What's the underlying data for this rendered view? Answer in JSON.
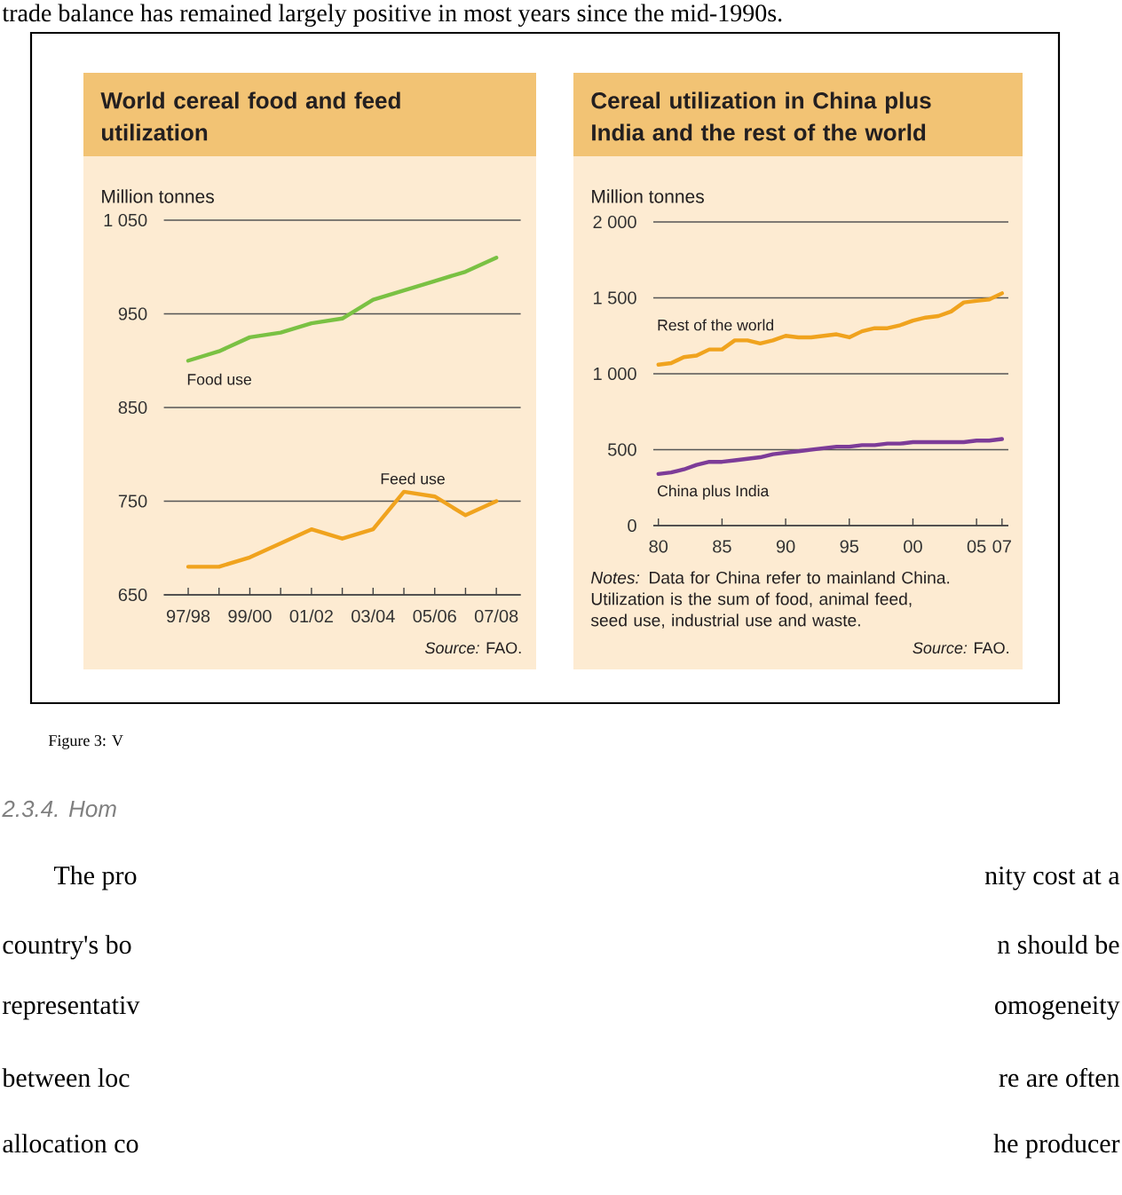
{
  "chart_data": [
    {
      "type": "line",
      "title": "World cereal food and feed utilization",
      "ylabel": "Million tonnes",
      "categories": [
        "97/98",
        null,
        "99/00",
        null,
        "01/02",
        null,
        "03/04",
        null,
        "05/06",
        null,
        "07/08"
      ],
      "series": [
        {
          "name": "Food use",
          "color": "#7ac143",
          "values": [
            900,
            910,
            925,
            930,
            940,
            945,
            965,
            975,
            985,
            995,
            1010
          ]
        },
        {
          "name": "Feed use",
          "color": "#f0a31e",
          "values": [
            680,
            680,
            690,
            705,
            720,
            710,
            720,
            760,
            755,
            735,
            750
          ]
        }
      ],
      "ylim": [
        650,
        1050
      ],
      "yticks": [
        650,
        750,
        850,
        950,
        {
          "value": 1050,
          "label": "1 050"
        }
      ],
      "grid": "y",
      "annotations": [
        "*Source:* FAO."
      ]
    },
    {
      "type": "line",
      "title": "Cereal utilization in China plus India and the rest of the world",
      "ylabel": "Million tonnes",
      "x": [
        1980,
        1981,
        1982,
        1983,
        1984,
        1985,
        1986,
        1987,
        1988,
        1989,
        1990,
        1991,
        1992,
        1993,
        1994,
        1995,
        1996,
        1997,
        1998,
        1999,
        2000,
        2001,
        2002,
        2003,
        2004,
        2005,
        2006,
        2007
      ],
      "series": [
        {
          "name": "Rest of the world",
          "color": "#f0a31e",
          "values": [
            1060,
            1070,
            1110,
            1120,
            1160,
            1160,
            1220,
            1220,
            1200,
            1220,
            1250,
            1240,
            1240,
            1250,
            1260,
            1240,
            1280,
            1300,
            1300,
            1320,
            1350,
            1370,
            1380,
            1410,
            1470,
            1480,
            1490,
            1530
          ]
        },
        {
          "name": "China plus India",
          "color": "#7d3c98",
          "values": [
            340,
            350,
            370,
            400,
            420,
            420,
            430,
            440,
            450,
            470,
            480,
            490,
            500,
            510,
            520,
            520,
            530,
            530,
            540,
            540,
            550,
            550,
            550,
            550,
            550,
            560,
            560,
            570
          ]
        }
      ],
      "xlim": [
        1979.6,
        2007.5
      ],
      "xticks": [
        {
          "value": 1980,
          "label": "80"
        },
        {
          "value": 1985,
          "label": "85"
        },
        {
          "value": 1990,
          "label": "90"
        },
        {
          "value": 1995,
          "label": "95"
        },
        {
          "value": 2000,
          "label": "00"
        },
        {
          "value": 2005,
          "label": "05"
        },
        {
          "value": 2007,
          "label": "07"
        }
      ],
      "ylim": [
        0,
        2000
      ],
      "yticks": [
        0,
        500,
        {
          "value": 1000,
          "label": "1 000"
        },
        {
          "value": 1500,
          "label": "1 500"
        },
        {
          "value": 2000,
          "label": "2 000"
        }
      ],
      "grid": "y",
      "annotations": [
        "*Notes:* Data for China refer to mainland China. Utilization is the sum of food, animal feed, seed use, industrial use and waste.",
        "*Source:* FAO."
      ]
    },
    {
      "type": "other",
      "annotations": [
        "trade balance has remained largely positive in most years since the mid-1990s.",
        "Figure 3: V",
        "2.3.4. Hom",
        "The pro",
        "nity cost at a",
        "country's bo",
        "n should be",
        "representativ",
        "omogeneity",
        "between loc",
        "re are often",
        "allocation co",
        "he producer"
      ]
    }
  ]
}
